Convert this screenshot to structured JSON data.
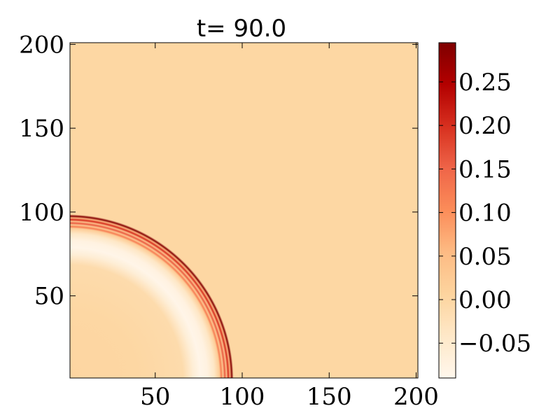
{
  "chart_data": {
    "type": "heatmap",
    "title": "t= 90.0",
    "xlabel": "",
    "ylabel": "",
    "xlim": [
      1,
      201
    ],
    "ylim": [
      1,
      201
    ],
    "xticks": [
      50,
      100,
      150,
      200
    ],
    "xtick_labels": [
      "50",
      "100",
      "150",
      "200"
    ],
    "yticks": [
      50,
      100,
      150,
      200
    ],
    "ytick_labels": [
      "50",
      "100",
      "150",
      "200"
    ],
    "colormap": "OrRd",
    "colorbar": {
      "range": [
        -0.09,
        0.295
      ],
      "ticks": [
        -0.05,
        0.0,
        0.05,
        0.1,
        0.15,
        0.2,
        0.25
      ],
      "tick_labels": [
        "−0.05",
        "0.00",
        "0.05",
        "0.10",
        "0.15",
        "0.20",
        "0.25"
      ]
    },
    "background_value": 0.0,
    "wave_center": [
      0,
      0
    ],
    "radial_profile": [
      {
        "r": 0,
        "v": 0.003
      },
      {
        "r": 40,
        "v": 0.0
      },
      {
        "r": 66,
        "v": -0.01
      },
      {
        "r": 72,
        "v": -0.06
      },
      {
        "r": 76,
        "v": -0.085
      },
      {
        "r": 80,
        "v": -0.075
      },
      {
        "r": 84,
        "v": -0.04
      },
      {
        "r": 87,
        "v": 0.02
      },
      {
        "r": 88,
        "v": 0.12
      },
      {
        "r": 89,
        "v": 0.03
      },
      {
        "r": 90,
        "v": 0.16
      },
      {
        "r": 91,
        "v": 0.04
      },
      {
        "r": 92,
        "v": 0.2
      },
      {
        "r": 93,
        "v": 0.06
      },
      {
        "r": 94,
        "v": 0.29
      },
      {
        "r": 95,
        "v": 0.0
      },
      {
        "r": 201,
        "v": 0.0
      }
    ],
    "colors": {
      "cmap_stops": [
        "#fff7ec",
        "#fee8c8",
        "#fdd49e",
        "#fdbb84",
        "#fc8d59",
        "#ef6548",
        "#d7301f",
        "#b30000",
        "#7f0000"
      ]
    }
  }
}
